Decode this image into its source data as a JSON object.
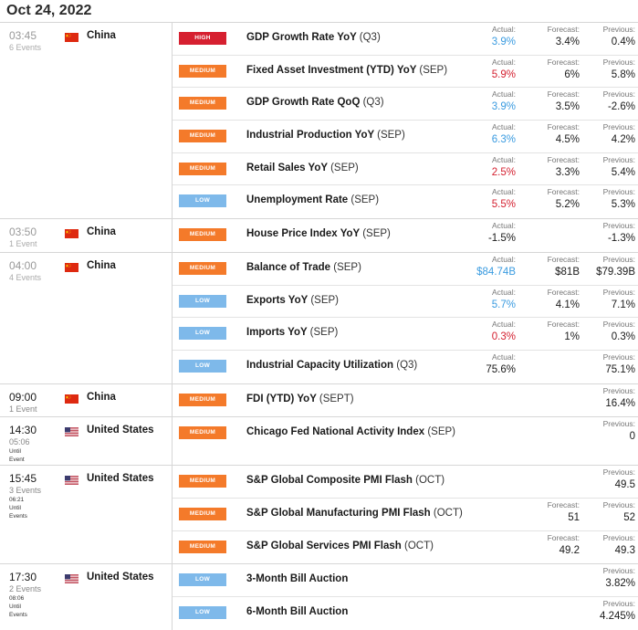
{
  "date": "Oct 24, 2022",
  "labels": {
    "actual": "Actual:",
    "forecast": "Forecast:",
    "previous": "Previous:"
  },
  "colors": {
    "high": "#d62030",
    "medium": "#f47a2a",
    "low": "#7eb9ea",
    "actual_up": "#3a9be0",
    "actual_down": "#d42030"
  },
  "groups": [
    {
      "time": "03:45",
      "sub": "6 Events",
      "country": "China",
      "flag": "china-flag-icon",
      "past": true,
      "events": [
        {
          "importance": "HIGH",
          "name": "GDP Growth Rate YoY",
          "period": "(Q3)",
          "actual": "3.9%",
          "actual_color": "blue",
          "forecast": "3.4%",
          "previous": "0.4%"
        },
        {
          "importance": "MEDIUM",
          "name": "Fixed Asset Investment (YTD) YoY",
          "period": "(SEP)",
          "actual": "5.9%",
          "actual_color": "red",
          "forecast": "6%",
          "previous": "5.8%"
        },
        {
          "importance": "MEDIUM",
          "name": "GDP Growth Rate QoQ",
          "period": "(Q3)",
          "actual": "3.9%",
          "actual_color": "blue",
          "forecast": "3.5%",
          "previous": "-2.6%"
        },
        {
          "importance": "MEDIUM",
          "name": "Industrial Production YoY",
          "period": "(SEP)",
          "actual": "6.3%",
          "actual_color": "blue",
          "forecast": "4.5%",
          "previous": "4.2%"
        },
        {
          "importance": "MEDIUM",
          "name": "Retail Sales YoY",
          "period": "(SEP)",
          "actual": "2.5%",
          "actual_color": "red",
          "forecast": "3.3%",
          "previous": "5.4%"
        },
        {
          "importance": "LOW",
          "name": "Unemployment Rate",
          "period": "(SEP)",
          "actual": "5.5%",
          "actual_color": "red",
          "forecast": "5.2%",
          "previous": "5.3%"
        }
      ]
    },
    {
      "time": "03:50",
      "sub": "1 Event",
      "country": "China",
      "flag": "china-flag-icon",
      "past": true,
      "events": [
        {
          "importance": "MEDIUM",
          "name": "House Price Index YoY",
          "period": "(SEP)",
          "actual": "-1.5%",
          "actual_color": "",
          "forecast": "",
          "previous": "-1.3%"
        }
      ]
    },
    {
      "time": "04:00",
      "sub": "4 Events",
      "country": "China",
      "flag": "china-flag-icon",
      "past": true,
      "events": [
        {
          "importance": "MEDIUM",
          "name": "Balance of Trade",
          "period": "(SEP)",
          "actual": "$84.74B",
          "actual_color": "blue",
          "forecast": "$81B",
          "previous": "$79.39B"
        },
        {
          "importance": "LOW",
          "name": "Exports YoY",
          "period": "(SEP)",
          "actual": "5.7%",
          "actual_color": "blue",
          "forecast": "4.1%",
          "previous": "7.1%"
        },
        {
          "importance": "LOW",
          "name": "Imports YoY",
          "period": "(SEP)",
          "actual": "0.3%",
          "actual_color": "red",
          "forecast": "1%",
          "previous": "0.3%"
        },
        {
          "importance": "LOW",
          "name": "Industrial Capacity Utilization",
          "period": "(Q3)",
          "actual": "75.6%",
          "actual_color": "",
          "forecast": "",
          "previous": "75.1%"
        }
      ]
    },
    {
      "time": "09:00",
      "sub": "1 Event",
      "country": "China",
      "flag": "china-flag-icon",
      "past": false,
      "events": [
        {
          "importance": "MEDIUM",
          "name": "FDI (YTD) YoY",
          "period": "(SEPT)",
          "actual": "",
          "actual_color": "",
          "forecast": "",
          "previous": "16.4%"
        }
      ]
    },
    {
      "time": "14:30",
      "sub": "05:06",
      "until": [
        "Until",
        "Event"
      ],
      "country": "United States",
      "flag": "us-flag-icon",
      "past": false,
      "events": [
        {
          "importance": "MEDIUM",
          "name": "Chicago Fed National Activity Index",
          "period": "(SEP)",
          "actual": "",
          "actual_color": "",
          "forecast": "",
          "previous": "0",
          "tall": true
        }
      ]
    },
    {
      "time": "15:45",
      "sub": "3 Events",
      "sub2": "06:21",
      "until": [
        "Until",
        "Events"
      ],
      "country": "United States",
      "flag": "us-flag-icon",
      "past": false,
      "events": [
        {
          "importance": "MEDIUM",
          "name": "S&P Global Composite PMI Flash",
          "period": "(OCT)",
          "actual": "",
          "actual_color": "",
          "forecast": "",
          "previous": "49.5"
        },
        {
          "importance": "MEDIUM",
          "name": "S&P Global Manufacturing PMI Flash",
          "period": "(OCT)",
          "actual": "",
          "actual_color": "",
          "forecast": "51",
          "previous": "52"
        },
        {
          "importance": "MEDIUM",
          "name": "S&P Global Services PMI Flash",
          "period": "(OCT)",
          "actual": "",
          "actual_color": "",
          "forecast": "49.2",
          "previous": "49.3"
        }
      ]
    },
    {
      "time": "17:30",
      "sub": "2 Events",
      "sub2": "08:06",
      "until": [
        "Until",
        "Events"
      ],
      "country": "United States",
      "flag": "us-flag-icon",
      "past": false,
      "events": [
        {
          "importance": "LOW",
          "name": "3-Month Bill Auction",
          "period": "",
          "actual": "",
          "actual_color": "",
          "forecast": "",
          "previous": "3.82%"
        },
        {
          "importance": "LOW",
          "name": "6-Month Bill Auction",
          "period": "",
          "actual": "",
          "actual_color": "",
          "forecast": "",
          "previous": "4.245%"
        }
      ]
    }
  ]
}
